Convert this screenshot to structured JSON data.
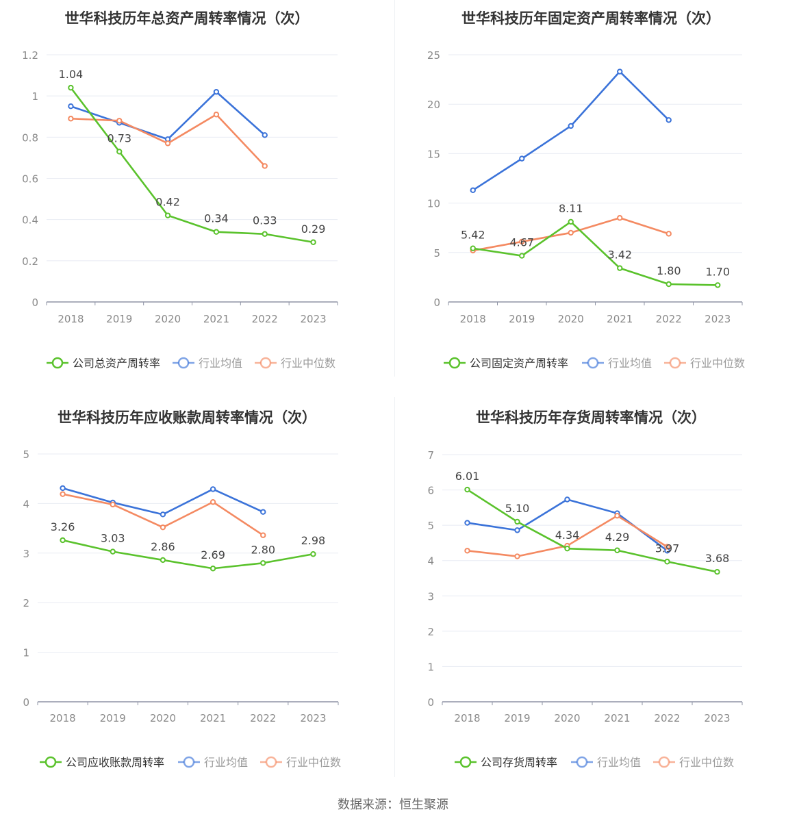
{
  "colors": {
    "company": "#5ac22c",
    "industry_avg": "#3b73d9",
    "industry_median": "#f48a62",
    "grid": "#e8ebf3",
    "axis": "#8f94a6",
    "tick_text": "#8a8a8a",
    "label_text": "#444444",
    "title_text": "#333333"
  },
  "source_text": "数据来源：恒生聚源",
  "chart_data": [
    {
      "type": "line",
      "title": "世华科技历年总资产周转率情况（次）",
      "categories": [
        "2018",
        "2019",
        "2020",
        "2021",
        "2022",
        "2023"
      ],
      "ylim": [
        0,
        1.2
      ],
      "yticks": [
        "0",
        "0.2",
        "0.4",
        "0.6",
        "0.8",
        "1",
        "1.2"
      ],
      "series": [
        {
          "name": "公司总资产周转率",
          "color": "#5ac22c",
          "values": [
            1.04,
            0.73,
            0.42,
            0.34,
            0.33,
            0.29
          ],
          "labels": [
            "1.04",
            "0.73",
            "0.42",
            "0.34",
            "0.33",
            "0.29"
          ]
        },
        {
          "name": "行业均值",
          "color": "#3b73d9",
          "values": [
            0.95,
            0.87,
            0.79,
            1.02,
            0.81,
            null
          ]
        },
        {
          "name": "行业中位数",
          "color": "#f48a62",
          "values": [
            0.89,
            0.88,
            0.77,
            0.91,
            0.66,
            null
          ]
        }
      ],
      "legend": "bottom"
    },
    {
      "type": "line",
      "title": "世华科技历年固定资产周转率情况（次）",
      "categories": [
        "2018",
        "2019",
        "2020",
        "2021",
        "2022",
        "2023"
      ],
      "ylim": [
        0,
        25
      ],
      "yticks": [
        "0",
        "5",
        "10",
        "15",
        "20",
        "25"
      ],
      "series": [
        {
          "name": "公司固定资产周转率",
          "color": "#5ac22c",
          "values": [
            5.42,
            4.67,
            8.11,
            3.42,
            1.8,
            1.7
          ],
          "labels": [
            "5.42",
            "4.67",
            "8.11",
            "3.42",
            "1.80",
            "1.70"
          ]
        },
        {
          "name": "行业均值",
          "color": "#3b73d9",
          "values": [
            11.3,
            14.5,
            17.8,
            23.3,
            18.4,
            null
          ]
        },
        {
          "name": "行业中位数",
          "color": "#f48a62",
          "values": [
            5.2,
            6.1,
            7.0,
            8.5,
            6.9,
            null
          ]
        }
      ],
      "legend": "bottom"
    },
    {
      "type": "line",
      "title": "世华科技历年应收账款周转率情况（次）",
      "categories": [
        "2018",
        "2019",
        "2020",
        "2021",
        "2022",
        "2023"
      ],
      "ylim": [
        0,
        5
      ],
      "yticks": [
        "0",
        "1",
        "2",
        "3",
        "4",
        "5"
      ],
      "series": [
        {
          "name": "公司应收账款周转率",
          "color": "#5ac22c",
          "values": [
            3.26,
            3.03,
            2.86,
            2.69,
            2.8,
            2.98
          ],
          "labels": [
            "3.26",
            "3.03",
            "2.86",
            "2.69",
            "2.80",
            "2.98"
          ]
        },
        {
          "name": "行业均值",
          "color": "#3b73d9",
          "values": [
            4.31,
            4.02,
            3.78,
            4.29,
            3.83,
            null
          ]
        },
        {
          "name": "行业中位数",
          "color": "#f48a62",
          "values": [
            4.19,
            3.98,
            3.52,
            4.03,
            3.36,
            null
          ]
        }
      ],
      "legend": "bottom"
    },
    {
      "type": "line",
      "title": "世华科技历年存货周转率情况（次）",
      "categories": [
        "2018",
        "2019",
        "2020",
        "2021",
        "2022",
        "2023"
      ],
      "ylim": [
        0,
        7
      ],
      "yticks": [
        "0",
        "1",
        "2",
        "3",
        "4",
        "5",
        "6",
        "7"
      ],
      "series": [
        {
          "name": "公司存货周转率",
          "color": "#5ac22c",
          "values": [
            6.01,
            5.1,
            4.34,
            4.29,
            3.97,
            3.68
          ],
          "labels": [
            "6.01",
            "5.10",
            "4.34",
            "4.29",
            "3.97",
            "3.68"
          ]
        },
        {
          "name": "行业均值",
          "color": "#3b73d9",
          "values": [
            5.07,
            4.86,
            5.73,
            5.34,
            4.28,
            null
          ]
        },
        {
          "name": "行业中位数",
          "color": "#f48a62",
          "values": [
            4.28,
            4.12,
            4.42,
            5.27,
            4.39,
            null
          ]
        }
      ],
      "legend": "bottom"
    }
  ]
}
